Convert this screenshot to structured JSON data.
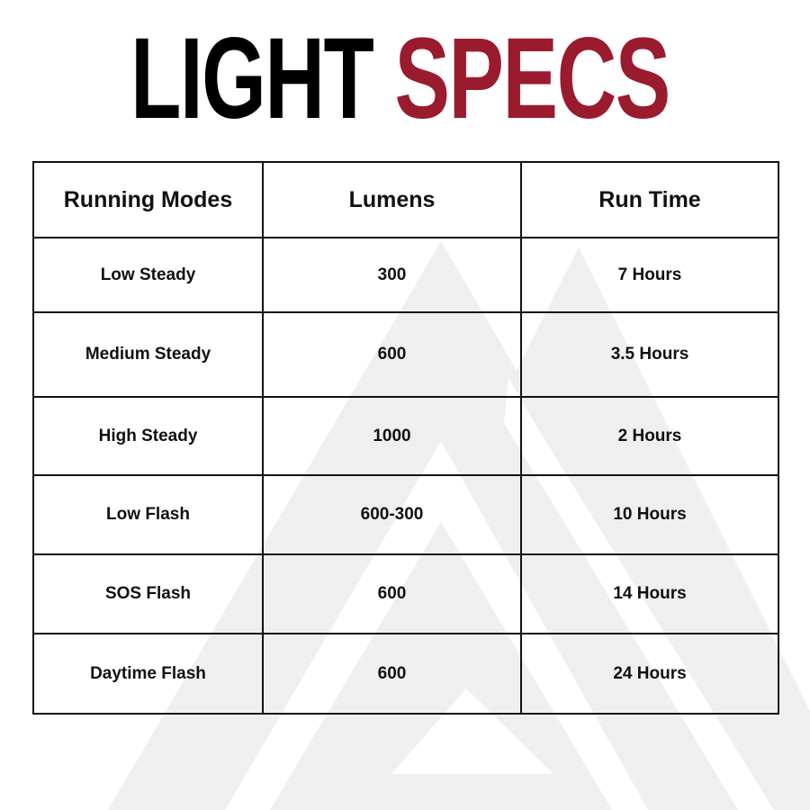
{
  "title": {
    "part1": "LIGHT",
    "part2": "SPECS",
    "accent_color": "#9b1b2e"
  },
  "table": {
    "headers": [
      "Running Modes",
      "Lumens",
      "Run Time"
    ],
    "rows": [
      [
        "Low Steady",
        "300",
        "7 Hours"
      ],
      [
        "Medium Steady",
        "600",
        "3.5 Hours"
      ],
      [
        "High Steady",
        "1000",
        "2 Hours"
      ],
      [
        "Low Flash",
        "600-300",
        "10 Hours"
      ],
      [
        "SOS Flash",
        "600",
        "14 Hours"
      ],
      [
        "Daytime Flash",
        "600",
        "24 Hours"
      ]
    ]
  },
  "watermark": {
    "icon": "triangle-logo-icon",
    "color": "#efefef"
  }
}
